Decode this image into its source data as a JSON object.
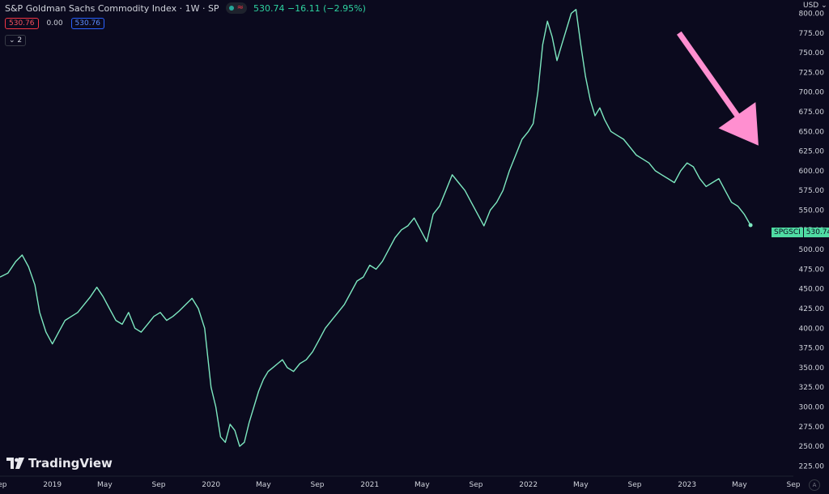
{
  "header": {
    "title": "S&P Goldman Sachs Commodity Index · 1W · SP",
    "quote": "530.74 −16.11 (−2.95%)"
  },
  "value_boxes": {
    "red": "530.76",
    "plain": "0.00",
    "blue": "530.76"
  },
  "indicator_toggle": "2",
  "currency": "USD",
  "symbol_label": {
    "name": "SPGSCI",
    "value": "530.74"
  },
  "brand": "TradingView",
  "colors": {
    "background": "#0b0a1e",
    "line": "#7de8c0",
    "arrow": "#ff8fd0",
    "text": "#d1d4dc"
  },
  "chart_data": {
    "type": "line",
    "title": "",
    "xlabel": "",
    "ylabel": "",
    "ylim": [
      212,
      817
    ],
    "xlim": [
      2018.67,
      2023.67
    ],
    "y_ticks": [
      "225.00",
      "250.00",
      "275.00",
      "300.00",
      "325.00",
      "350.00",
      "375.00",
      "400.00",
      "425.00",
      "450.00",
      "475.00",
      "500.00",
      "525.00",
      "550.00",
      "575.00",
      "600.00",
      "625.00",
      "650.00",
      "675.00",
      "700.00",
      "725.00",
      "750.00",
      "775.00",
      "800.00"
    ],
    "x_ticks": [
      {
        "label": "Sep",
        "x": 2018.67
      },
      {
        "label": "2019",
        "x": 2019.0
      },
      {
        "label": "May",
        "x": 2019.33
      },
      {
        "label": "Sep",
        "x": 2019.67
      },
      {
        "label": "2020",
        "x": 2020.0
      },
      {
        "label": "May",
        "x": 2020.33
      },
      {
        "label": "Sep",
        "x": 2020.67
      },
      {
        "label": "2021",
        "x": 2021.0
      },
      {
        "label": "May",
        "x": 2021.33
      },
      {
        "label": "Sep",
        "x": 2021.67
      },
      {
        "label": "2022",
        "x": 2022.0
      },
      {
        "label": "May",
        "x": 2022.33
      },
      {
        "label": "Sep",
        "x": 2022.67
      },
      {
        "label": "2023",
        "x": 2023.0
      },
      {
        "label": "May",
        "x": 2023.33
      },
      {
        "label": "Sep",
        "x": 2023.67
      }
    ],
    "grid": false,
    "series": [
      {
        "x": [
          2018.67,
          2018.72,
          2018.77,
          2018.81,
          2018.85,
          2018.89,
          2018.92,
          2018.96,
          2019.0,
          2019.04,
          2019.08,
          2019.12,
          2019.16,
          2019.2,
          2019.24,
          2019.28,
          2019.32,
          2019.36,
          2019.4,
          2019.44,
          2019.48,
          2019.52,
          2019.56,
          2019.6,
          2019.64,
          2019.68,
          2019.72,
          2019.76,
          2019.8,
          2019.84,
          2019.88,
          2019.92,
          2019.96,
          2020.0,
          2020.03,
          2020.06,
          2020.09,
          2020.12,
          2020.15,
          2020.18,
          2020.21,
          2020.24,
          2020.27,
          2020.3,
          2020.33,
          2020.36,
          2020.39,
          2020.42,
          2020.45,
          2020.48,
          2020.52,
          2020.56,
          2020.6,
          2020.64,
          2020.68,
          2020.72,
          2020.76,
          2020.8,
          2020.84,
          2020.88,
          2020.92,
          2020.96,
          2021.0,
          2021.04,
          2021.08,
          2021.12,
          2021.16,
          2021.2,
          2021.24,
          2021.28,
          2021.32,
          2021.36,
          2021.4,
          2021.44,
          2021.48,
          2021.52,
          2021.56,
          2021.6,
          2021.64,
          2021.68,
          2021.72,
          2021.76,
          2021.8,
          2021.84,
          2021.88,
          2021.92,
          2021.96,
          2022.0,
          2022.03,
          2022.06,
          2022.09,
          2022.12,
          2022.15,
          2022.18,
          2022.21,
          2022.24,
          2022.27,
          2022.3,
          2022.33,
          2022.36,
          2022.39,
          2022.42,
          2022.45,
          2022.48,
          2022.52,
          2022.56,
          2022.6,
          2022.64,
          2022.68,
          2022.72,
          2022.76,
          2022.8,
          2022.84,
          2022.88,
          2022.92,
          2022.96,
          2023.0,
          2023.04,
          2023.08,
          2023.12,
          2023.16,
          2023.2,
          2023.24,
          2023.28,
          2023.32,
          2023.36,
          2023.4
        ],
        "y": [
          465,
          470,
          485,
          493,
          478,
          455,
          420,
          395,
          380,
          395,
          410,
          415,
          420,
          430,
          440,
          452,
          440,
          425,
          410,
          405,
          420,
          400,
          395,
          405,
          415,
          420,
          410,
          415,
          422,
          430,
          438,
          425,
          400,
          325,
          300,
          262,
          255,
          278,
          270,
          250,
          255,
          280,
          300,
          320,
          335,
          345,
          350,
          355,
          360,
          350,
          345,
          355,
          360,
          370,
          385,
          400,
          410,
          420,
          430,
          445,
          460,
          465,
          480,
          475,
          485,
          500,
          515,
          525,
          530,
          540,
          525,
          510,
          545,
          555,
          575,
          595,
          585,
          575,
          560,
          545,
          530,
          550,
          560,
          575,
          600,
          620,
          640,
          650,
          660,
          700,
          760,
          790,
          770,
          740,
          760,
          780,
          800,
          805,
          760,
          720,
          690,
          670,
          680,
          665,
          650,
          645,
          640,
          630,
          620,
          615,
          610,
          600,
          595,
          590,
          585,
          600,
          610,
          605,
          590,
          580,
          585,
          590,
          575,
          560,
          555,
          545,
          531
        ]
      }
    ],
    "annotations": [
      {
        "type": "arrow",
        "from": [
          2022.95,
          775
        ],
        "to": [
          2023.45,
          632
        ]
      }
    ]
  }
}
